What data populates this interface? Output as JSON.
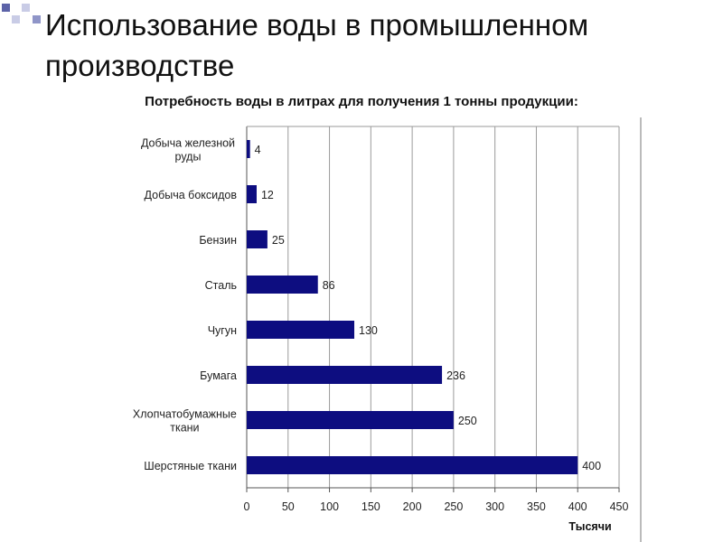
{
  "slide": {
    "title": "Использование воды в промышленном производстве",
    "subtitle": "Потребность воды в литрах для получения 1 тонны продукции:"
  },
  "colors": {
    "bar_fill": "#0d0d80",
    "grid": "#9a9a9a",
    "deco_square_light": "#c9cce6",
    "deco_square_dark": "#5c63a8"
  },
  "chart_data": {
    "type": "bar",
    "orientation": "horizontal",
    "categories": [
      "Добыча железной руды",
      "Добыча боксидов",
      "Бензин",
      "Сталь",
      "Чугун",
      "Бумага",
      "Хлопчатобумажные ткани",
      "Шерстяные ткани"
    ],
    "values": [
      4,
      12,
      25,
      86,
      130,
      236,
      250,
      400
    ],
    "data_labels": [
      "4",
      "12",
      "25",
      "86",
      "130",
      "236",
      "250",
      "400"
    ],
    "xlim": [
      0,
      450
    ],
    "x_ticks": [
      0,
      50,
      100,
      150,
      200,
      250,
      300,
      350,
      400,
      450
    ],
    "unit_label": "Тысячи",
    "grid": true
  }
}
